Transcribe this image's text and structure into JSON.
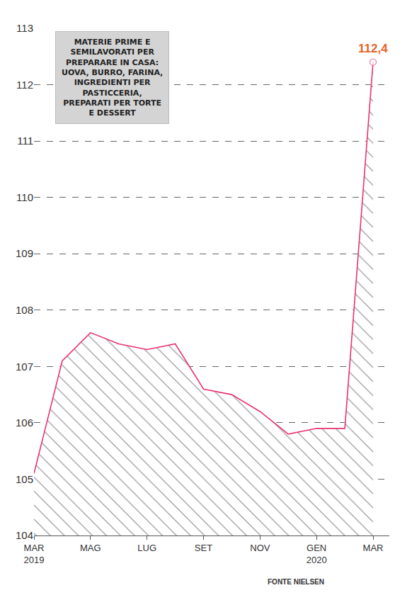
{
  "chart_data": {
    "type": "area",
    "title": "MATERIE PRIME E SEMILAVORATI PER PREPARARE IN CASA: UOVA, BURRO, FARINA, INGREDIENTI PER PASTICCERIA, PREPARATI PER TORTE E DESSERT",
    "categories": [
      "MAR 2019",
      null,
      "MAG",
      null,
      "LUG",
      null,
      "SET",
      null,
      "NOV",
      null,
      "GEN 2020",
      null,
      "MAR"
    ],
    "values": [
      105.1,
      107.1,
      107.6,
      107.4,
      107.3,
      107.4,
      106.6,
      106.5,
      106.2,
      105.8,
      105.9,
      105.9,
      112.4
    ],
    "color": "#e8336d",
    "ylim": [
      104,
      113
    ],
    "yticks": [
      104,
      105,
      106,
      107,
      108,
      109,
      110,
      111,
      112,
      113
    ],
    "grid": true,
    "annotations": [
      {
        "x": 12,
        "y": 112.4,
        "text": "112,4"
      }
    ],
    "source": "FONTE NIELSEN"
  }
}
